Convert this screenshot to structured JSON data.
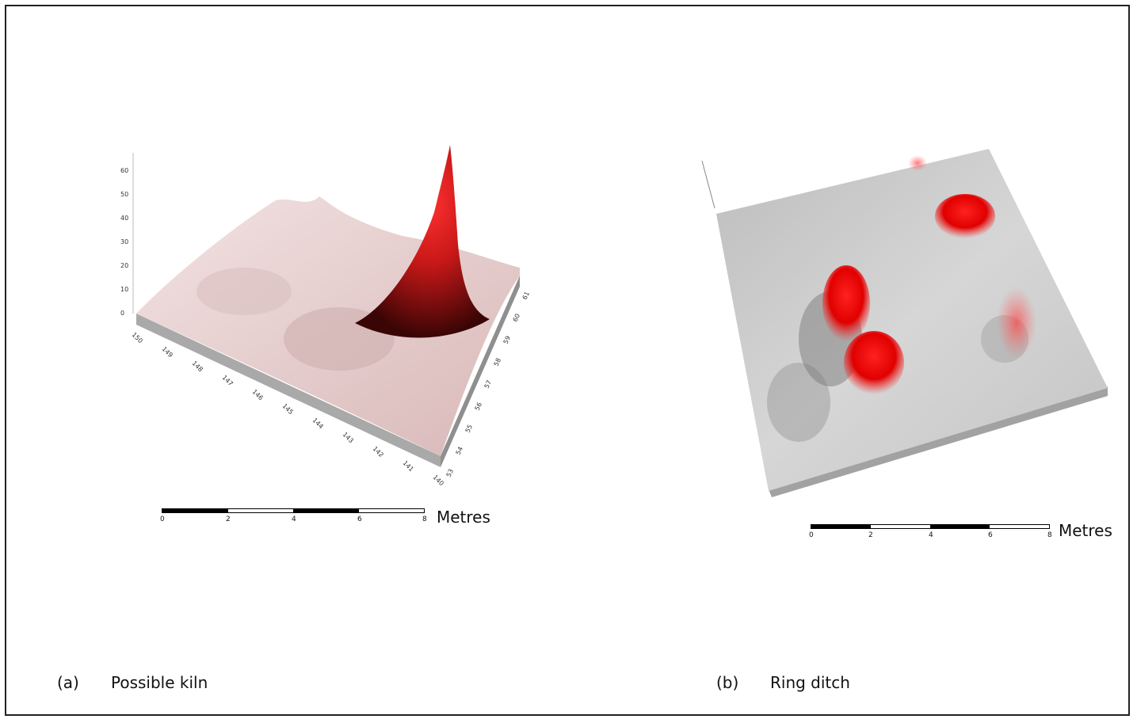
{
  "panel_a": {
    "caption_label": "(a)",
    "caption_text": "Possible kiln",
    "z_ticks": [
      "0",
      "10",
      "20",
      "30",
      "40",
      "50",
      "60"
    ],
    "x_ticks": [
      "150",
      "149",
      "148",
      "147",
      "146",
      "145",
      "144",
      "143",
      "142",
      "141",
      "140"
    ],
    "y_ticks": [
      "53",
      "54",
      "55",
      "56",
      "57",
      "58",
      "59",
      "60",
      "61"
    ],
    "scale_ticks": [
      "0",
      "2",
      "4",
      "6",
      "8"
    ],
    "scale_unit": "Metres",
    "surface_color": "#e6cccc",
    "peak_color": "#e02020"
  },
  "panel_b": {
    "caption_label": "(b)",
    "caption_text": "Ring ditch",
    "scale_ticks": [
      "0",
      "2",
      "4",
      "6",
      "8"
    ],
    "scale_unit": "Metres",
    "surface_color": "#c8c8c8",
    "anomaly_color": "#ff1010"
  }
}
